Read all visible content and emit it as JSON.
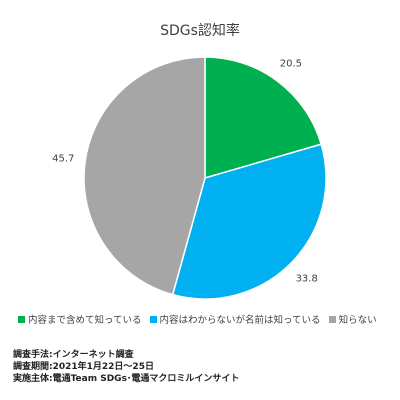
{
  "chart_data": {
    "type": "pie",
    "title": "SDGs認知率",
    "slices": [
      {
        "label": "内容まで含めて知っている",
        "value": 20.5,
        "color": "#00b050"
      },
      {
        "label": "内容はわからないが名前は知っている",
        "value": 33.8,
        "color": "#00b0f0"
      },
      {
        "label": "知らない",
        "value": 45.7,
        "color": "#a6a6a6"
      }
    ],
    "legend_position": "bottom",
    "start_angle": "12 o'clock",
    "direction": "clockwise"
  },
  "notes": [
    "調査手法:インターネット調査",
    "調査期間:2021年1月22日～25日",
    "実施主体:電通Team SDGs･電通マクロミルインサイト"
  ]
}
